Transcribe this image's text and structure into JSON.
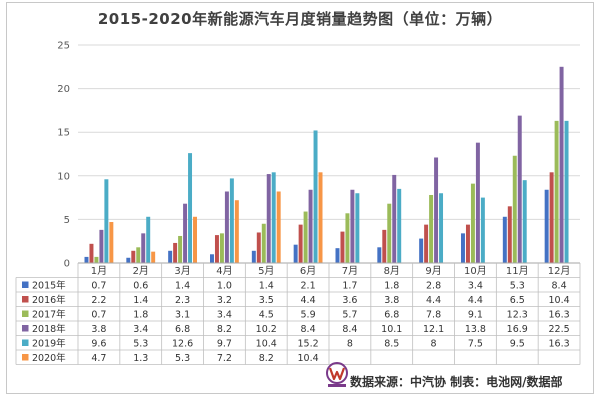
{
  "chart_data": {
    "type": "bar",
    "title": "2015-2020年新能源汽车月度销量趋势图（单位：万辆）",
    "categories": [
      "1月",
      "2月",
      "3月",
      "4月",
      "5月",
      "6月",
      "7月",
      "8月",
      "9月",
      "10月",
      "11月",
      "12月"
    ],
    "ylim": [
      0,
      25
    ],
    "yticks": [
      0,
      5,
      10,
      15,
      20,
      25
    ],
    "grid": true,
    "series": [
      {
        "name": "2015年",
        "color": "#4472C4",
        "values": [
          0.7,
          0.6,
          1.4,
          1.0,
          1.4,
          2.1,
          1.7,
          1.8,
          2.8,
          3.4,
          5.3,
          8.4
        ],
        "labels": [
          "0.7",
          "0.6",
          "1.4",
          "1.0",
          "1.4",
          "2.1",
          "1.7",
          "1.8",
          "2.8",
          "3.4",
          "5.3",
          "8.4"
        ]
      },
      {
        "name": "2016年",
        "color": "#C0504D",
        "values": [
          2.2,
          1.4,
          2.3,
          3.2,
          3.5,
          4.4,
          3.6,
          3.8,
          4.4,
          4.4,
          6.5,
          10.4
        ],
        "labels": [
          "2.2",
          "1.4",
          "2.3",
          "3.2",
          "3.5",
          "4.4",
          "3.6",
          "3.8",
          "4.4",
          "4.4",
          "6.5",
          "10.4"
        ]
      },
      {
        "name": "2017年",
        "color": "#9BBB59",
        "values": [
          0.7,
          1.8,
          3.1,
          3.4,
          4.5,
          5.9,
          5.7,
          6.8,
          7.8,
          9.1,
          12.3,
          16.3
        ],
        "labels": [
          "0.7",
          "1.8",
          "3.1",
          "3.4",
          "4.5",
          "5.9",
          "5.7",
          "6.8",
          "7.8",
          "9.1",
          "12.3",
          "16.3"
        ]
      },
      {
        "name": "2018年",
        "color": "#8064A2",
        "values": [
          3.8,
          3.4,
          6.8,
          8.2,
          10.2,
          8.4,
          8.4,
          10.1,
          12.1,
          13.8,
          16.9,
          22.5
        ],
        "labels": [
          "3.8",
          "3.4",
          "6.8",
          "8.2",
          "10.2",
          "8.4",
          "8.4",
          "10.1",
          "12.1",
          "13.8",
          "16.9",
          "22.5"
        ]
      },
      {
        "name": "2019年",
        "color": "#4BACC6",
        "values": [
          9.6,
          5.3,
          12.6,
          9.7,
          10.4,
          15.2,
          8,
          8.5,
          8,
          7.5,
          9.5,
          16.3
        ],
        "labels": [
          "9.6",
          "5.3",
          "12.6",
          "9.7",
          "10.4",
          "15.2",
          "8",
          "8.5",
          "8",
          "7.5",
          "9.5",
          "16.3"
        ]
      },
      {
        "name": "2020年",
        "color": "#F79646",
        "values": [
          4.7,
          1.3,
          5.3,
          7.2,
          8.2,
          10.4,
          null,
          null,
          null,
          null,
          null,
          null
        ],
        "labels": [
          "4.7",
          "1.3",
          "5.3",
          "7.2",
          "8.2",
          "10.4",
          "",
          "",
          "",
          "",
          "",
          ""
        ]
      }
    ]
  },
  "source_note": "数据来源：中汽协  制表：电池网/数据部"
}
